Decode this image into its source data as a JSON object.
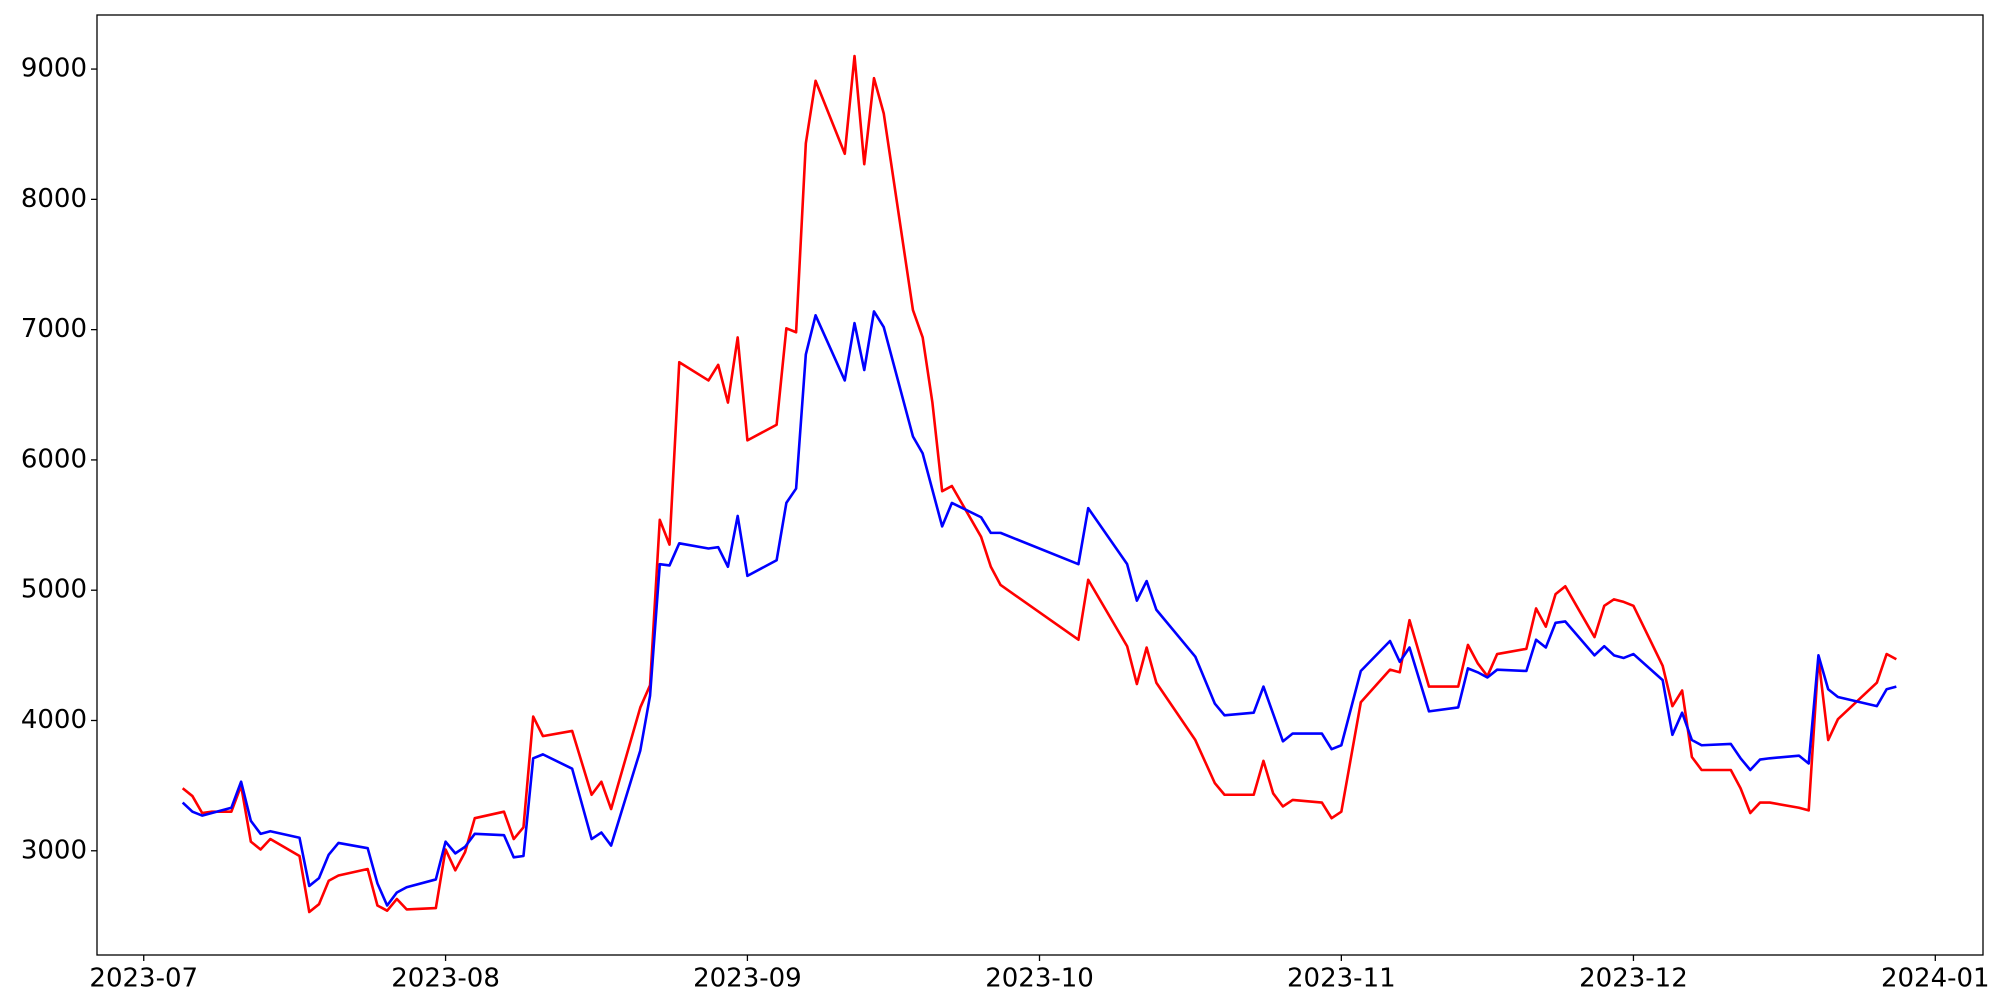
{
  "chart_data": {
    "type": "line",
    "x": [
      4,
      5,
      6,
      7,
      9,
      10,
      11,
      12,
      13,
      16,
      17,
      18,
      19,
      20,
      23,
      24,
      25,
      26,
      27,
      30,
      31,
      32,
      33,
      34,
      37,
      38,
      39,
      40,
      41,
      44,
      46,
      47,
      48,
      51,
      52,
      53,
      54,
      55,
      58,
      59,
      60,
      61,
      62,
      65,
      66,
      67,
      68,
      69,
      72,
      73,
      74,
      75,
      76,
      79,
      80,
      81,
      82,
      83,
      86,
      87,
      88,
      96,
      97,
      101,
      102,
      103,
      104,
      108,
      110,
      111,
      114,
      115,
      116,
      117,
      118,
      121,
      122,
      123,
      125,
      128,
      129,
      130,
      132,
      135,
      136,
      137,
      138,
      139,
      142,
      143,
      144,
      145,
      146,
      149,
      150,
      151,
      152,
      153,
      156,
      157,
      158,
      159,
      160,
      163,
      164,
      165,
      166,
      167,
      170,
      171,
      172,
      173,
      174,
      178,
      179,
      180
    ],
    "series": [
      {
        "color": "#ff0000",
        "values": [
          3480,
          3420,
          3290,
          3300,
          3300,
          3500,
          3070,
          3010,
          3090,
          2960,
          2530,
          2590,
          2770,
          2810,
          2860,
          2580,
          2540,
          2630,
          2550,
          2560,
          3010,
          2850,
          2990,
          3250,
          3300,
          3090,
          3180,
          4030,
          3880,
          3920,
          3430,
          3530,
          3320,
          4100,
          4270,
          5540,
          5350,
          6750,
          6610,
          6730,
          6440,
          6940,
          6150,
          6270,
          7010,
          6980,
          8430,
          8910,
          8350,
          9100,
          8270,
          8930,
          8660,
          7150,
          6940,
          6440,
          5760,
          5800,
          5410,
          5180,
          5040,
          4620,
          5080,
          4570,
          4280,
          4560,
          4290,
          3850,
          3520,
          3430,
          3430,
          3690,
          3440,
          3340,
          3390,
          3370,
          3250,
          3300,
          4140,
          4390,
          4370,
          4770,
          4260,
          4260,
          4580,
          4440,
          4340,
          4510,
          4550,
          4860,
          4720,
          4970,
          5030,
          4640,
          4880,
          4930,
          4910,
          4880,
          4420,
          4110,
          4230,
          3720,
          3620,
          3620,
          3480,
          3290,
          3370,
          3370,
          3330,
          3310,
          4480,
          3850,
          4010,
          4290,
          4510,
          4470
        ]
      },
      {
        "color": "#0000ff",
        "values": [
          3370,
          3300,
          3270,
          3290,
          3330,
          3530,
          3230,
          3130,
          3150,
          3100,
          2730,
          2790,
          2970,
          3060,
          3020,
          2750,
          2580,
          2680,
          2720,
          2780,
          3070,
          2980,
          3030,
          3130,
          3120,
          2950,
          2960,
          3710,
          3740,
          3630,
          3090,
          3140,
          3040,
          3770,
          4190,
          5200,
          5190,
          5360,
          5320,
          5330,
          5180,
          5570,
          5110,
          5230,
          5670,
          5780,
          6810,
          7110,
          6610,
          7050,
          6690,
          7140,
          7020,
          6180,
          6050,
          5770,
          5490,
          5670,
          5560,
          5440,
          5440,
          5200,
          5630,
          5200,
          4920,
          5070,
          4850,
          4490,
          4130,
          4040,
          4060,
          4260,
          4050,
          3840,
          3900,
          3900,
          3780,
          3810,
          4380,
          4610,
          4450,
          4560,
          4070,
          4100,
          4400,
          4370,
          4330,
          4390,
          4380,
          4620,
          4560,
          4750,
          4760,
          4500,
          4570,
          4500,
          4480,
          4510,
          4310,
          3890,
          4060,
          3850,
          3810,
          3820,
          3710,
          3620,
          3700,
          3710,
          3730,
          3670,
          4500,
          4240,
          4180,
          4110,
          4240,
          4260
        ]
      }
    ],
    "xlim": [
      -4.8,
      188.9
    ],
    "xticks": [
      {
        "value": 0,
        "label": "2023-07"
      },
      {
        "value": 31,
        "label": "2023-08"
      },
      {
        "value": 62,
        "label": "2023-09"
      },
      {
        "value": 92,
        "label": "2023-10"
      },
      {
        "value": 123,
        "label": "2023-11"
      },
      {
        "value": 153,
        "label": "2023-12"
      },
      {
        "value": 184,
        "label": "2024-01"
      }
    ],
    "ylim": [
      2200,
      9415
    ],
    "yticks": [
      3000,
      4000,
      5000,
      6000,
      7000,
      8000,
      9000
    ],
    "grid": false
  }
}
